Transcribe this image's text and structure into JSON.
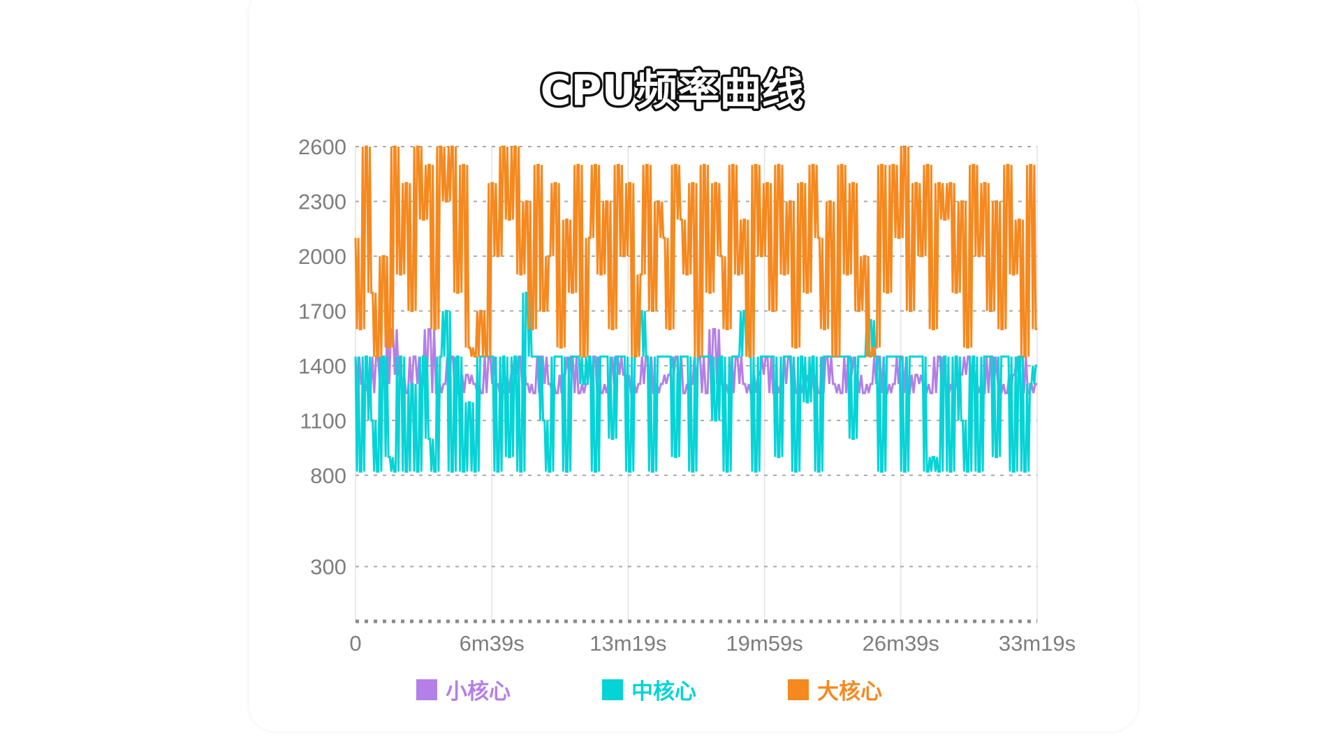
{
  "chart_data": {
    "type": "line",
    "title": "CPU频率曲线",
    "xlabel": "",
    "ylabel": "",
    "ylim": [
      0,
      2600
    ],
    "y_ticks": [
      "2600",
      "2300",
      "2000",
      "1700",
      "1400",
      "1100",
      "800",
      "300"
    ],
    "x_ticks": [
      "0",
      "6m39s",
      "13m19s",
      "19m59s",
      "26m39s",
      "33m19s"
    ],
    "grid": true,
    "legend_position": "bottom",
    "series": [
      {
        "name": "小核心",
        "color": "#B47FE6",
        "values": [
          1450,
          1300,
          1250,
          1450,
          1300,
          1600,
          1350,
          1250,
          1450,
          1300,
          1600,
          1250,
          1300,
          1450,
          1250,
          1350,
          1300,
          1250,
          1450,
          1300,
          1250,
          1350,
          1450,
          1300,
          1250,
          1450,
          1300,
          1250,
          1350,
          1450,
          1250,
          1300,
          1450,
          1250,
          1300,
          1450,
          1350,
          1250,
          1300,
          1450,
          1250,
          1300,
          1350,
          1450,
          1250,
          1300,
          1450,
          1250,
          1600,
          1300,
          1250,
          1450,
          1300,
          1250,
          1350,
          1450,
          1250,
          1300,
          1450,
          1250,
          1300,
          1350,
          1250,
          1450,
          1300,
          1250,
          1450,
          1350,
          1250,
          1300,
          1450,
          1250,
          1300,
          1450,
          1250,
          1350,
          1300,
          1250,
          1450,
          1300,
          1250,
          1350,
          1450,
          1300,
          1250,
          1450,
          1300,
          1250,
          1350,
          1450,
          1250,
          1300
        ]
      },
      {
        "name": "中核心",
        "color": "#06D3D6",
        "values": [
          1450,
          820,
          1450,
          1100,
          820,
          1450,
          900,
          820,
          1450,
          820,
          1300,
          820,
          1450,
          1000,
          820,
          1450,
          1700,
          820,
          1450,
          820,
          1200,
          820,
          1450,
          1450,
          1450,
          820,
          1450,
          900,
          1450,
          820,
          1800,
          1450,
          1450,
          1100,
          820,
          1450,
          1450,
          820,
          1450,
          1450,
          1300,
          1450,
          820,
          1450,
          1450,
          1000,
          1450,
          1450,
          820,
          1450,
          1700,
          1450,
          820,
          1450,
          1450,
          1450,
          900,
          1450,
          1450,
          820,
          1450,
          1450,
          1450,
          1100,
          1450,
          820,
          1450,
          1450,
          1700,
          1450,
          820,
          1450,
          1450,
          1450,
          900,
          1450,
          1450,
          820,
          1450,
          1200,
          1450,
          820,
          1450,
          1450,
          1450,
          1450,
          1450,
          1000,
          1450,
          1450,
          1650,
          1450,
          820,
          1450,
          1450,
          1450,
          820,
          1450,
          1450,
          1450,
          820,
          900,
          820,
          1450,
          820,
          1450,
          1100,
          820,
          1450,
          820,
          1450,
          1450,
          900,
          1450,
          1450,
          820,
          1450,
          820,
          1300,
          1400
        ]
      },
      {
        "name": "大核心",
        "color": "#F5891F",
        "values": [
          2100,
          1600,
          2600,
          1800,
          1450,
          2000,
          1500,
          2600,
          1900,
          2400,
          1700,
          2600,
          2200,
          2500,
          1600,
          2600,
          2300,
          2600,
          1800,
          2500,
          1500,
          1450,
          1700,
          1450,
          2400,
          2000,
          2600,
          2200,
          2600,
          1900,
          2300,
          1600,
          2500,
          1700,
          2000,
          2400,
          1500,
          2200,
          1800,
          2500,
          1450,
          2100,
          2500,
          1900,
          2300,
          1600,
          2500,
          2000,
          2400,
          1450,
          1900,
          2500,
          1700,
          2300,
          2100,
          1600,
          2500,
          2200,
          1900,
          2400,
          1450,
          2500,
          1800,
          2400,
          2000,
          1600,
          2500,
          1900,
          2200,
          1450,
          2500,
          2000,
          2400,
          1700,
          2500,
          1900,
          2300,
          1500,
          2400,
          1800,
          2500,
          2100,
          1600,
          2300,
          1450,
          2500,
          1900,
          2400,
          1700,
          2000,
          1450,
          1500,
          2500,
          1800,
          2500,
          2100,
          2600,
          1700,
          2400,
          2000,
          2500,
          1600,
          2400,
          2200,
          2400,
          1800,
          2300,
          1500,
          2500,
          2000,
          2400,
          1700,
          2300,
          1600,
          2500,
          1900,
          2200,
          1450,
          2500,
          1600
        ]
      }
    ]
  }
}
